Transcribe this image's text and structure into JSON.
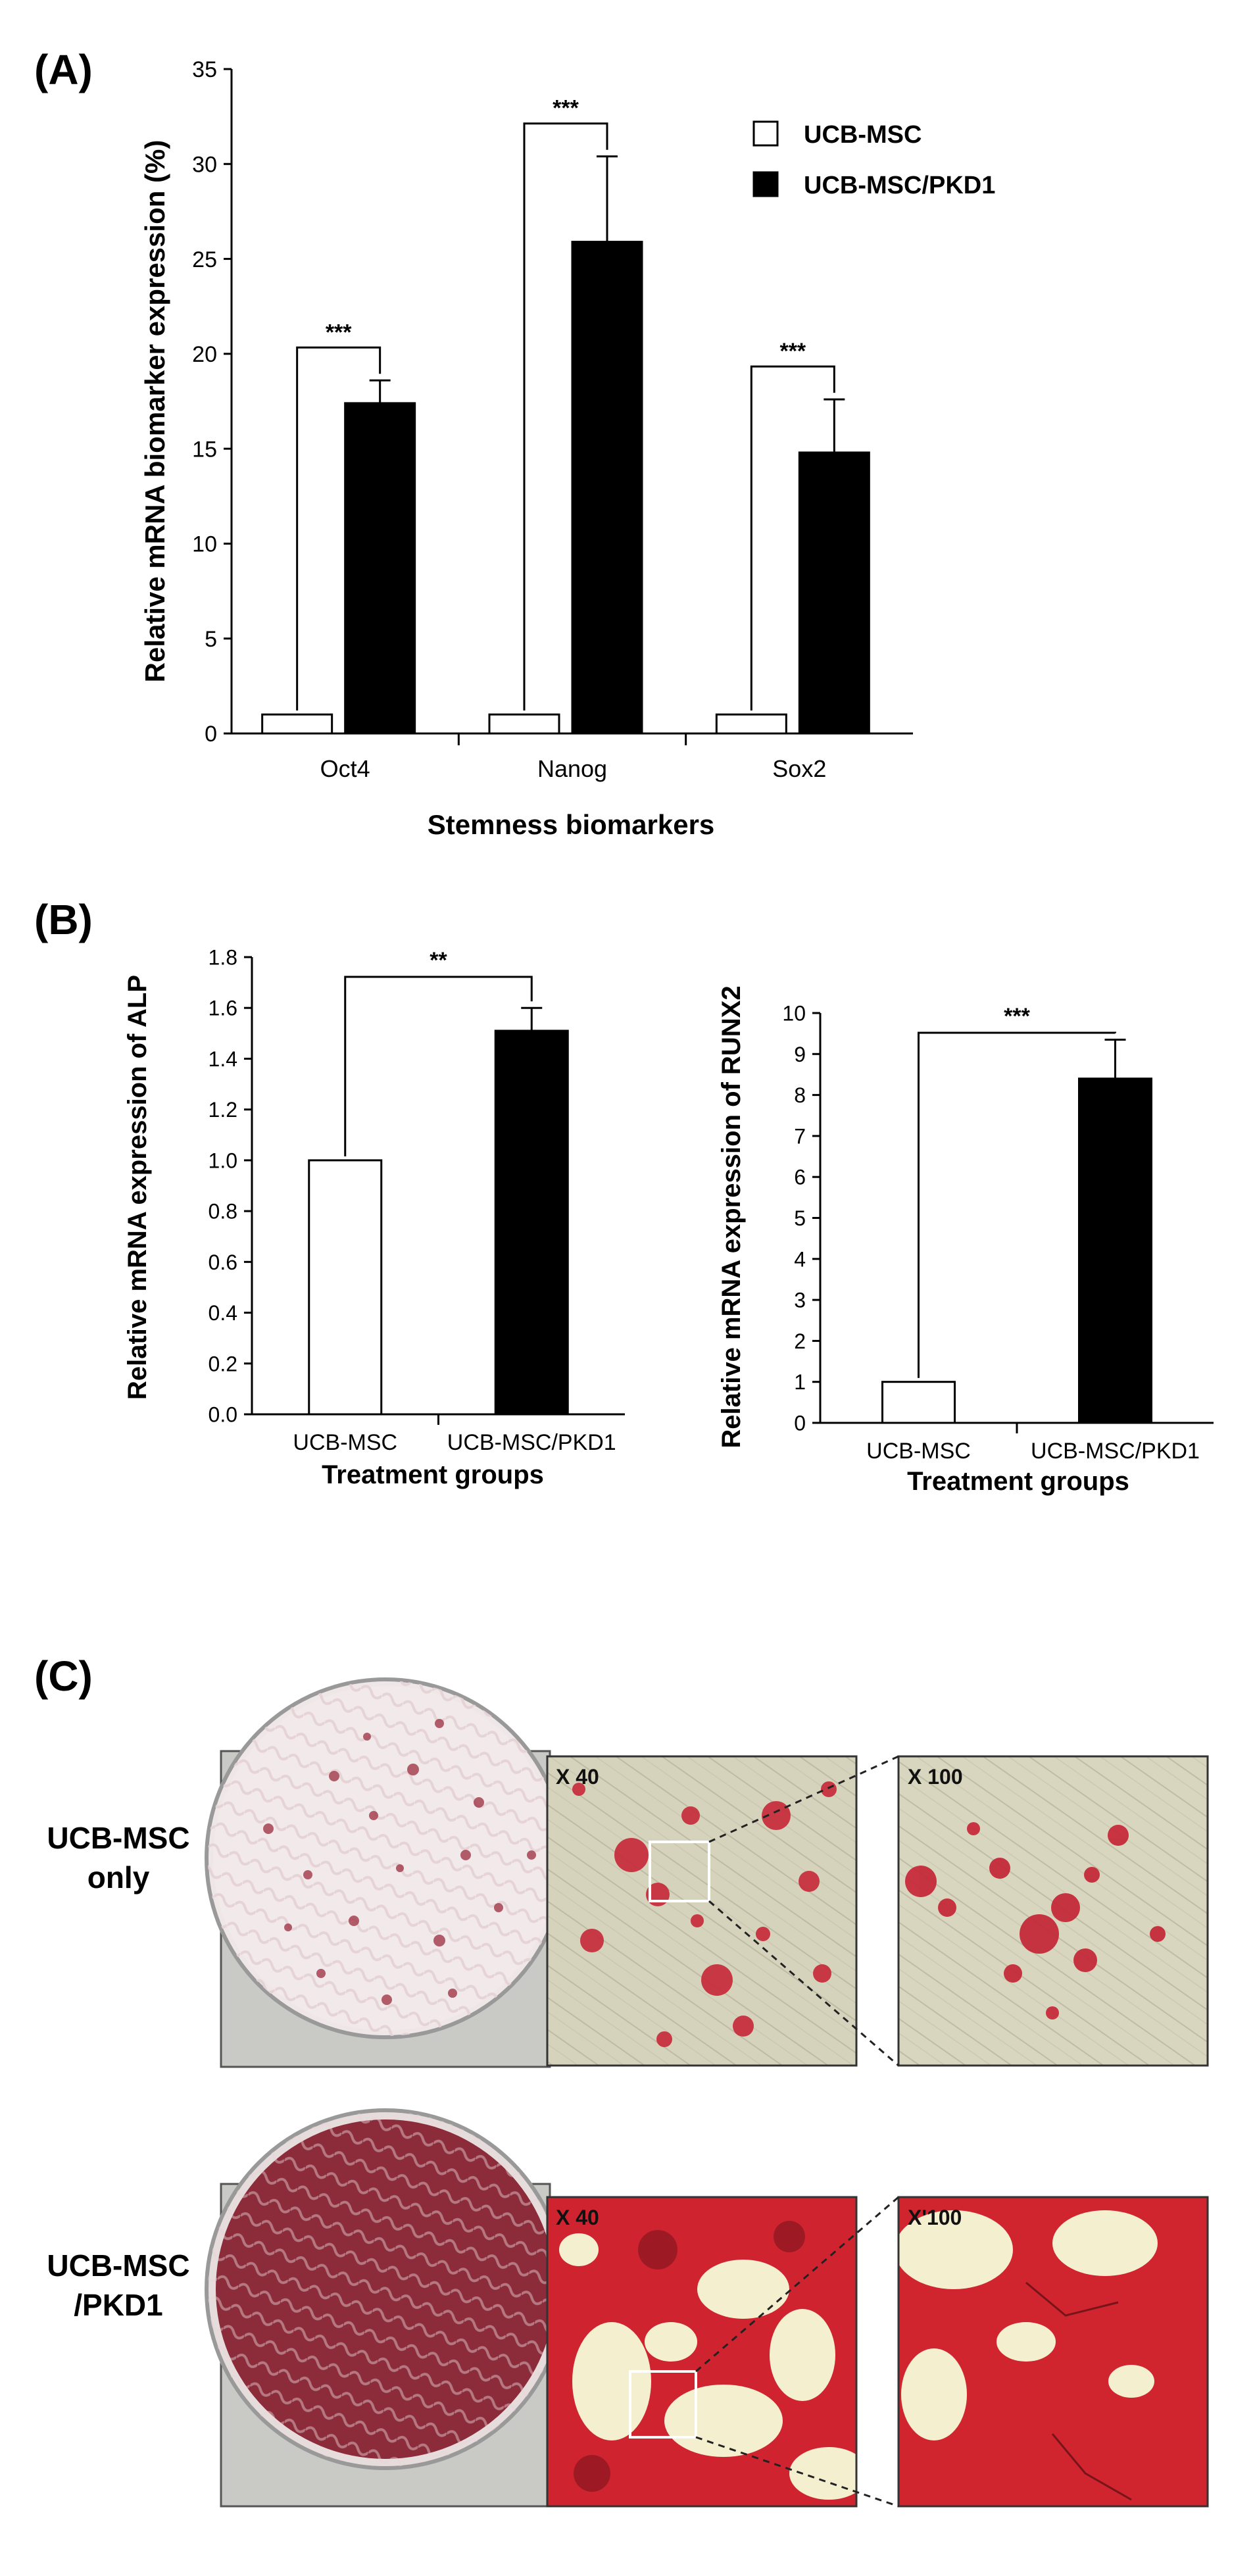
{
  "panels": {
    "A": {
      "label": "(A)"
    },
    "B": {
      "label": "(B)"
    },
    "C": {
      "label": "(C)"
    }
  },
  "legend": {
    "items": [
      "UCB-MSC",
      "UCB-MSC/PKD1"
    ]
  },
  "colors": {
    "control": "#ffffff",
    "treated": "#000000",
    "axis": "#000000"
  },
  "chart_data": [
    {
      "id": "A",
      "type": "bar",
      "title": "",
      "xlabel": "Stemness biomarkers",
      "ylabel": "Relative mRNA biomarker expression (%)",
      "categories": [
        "Oct4",
        "Nanog",
        "Sox2"
      ],
      "series": [
        {
          "name": "UCB-MSC",
          "values": [
            1,
            1,
            1
          ],
          "errors": [
            0,
            0,
            0
          ]
        },
        {
          "name": "UCB-MSC/PKD1",
          "values": [
            17.4,
            25.9,
            14.8
          ],
          "errors": [
            1.2,
            4.5,
            2.8
          ]
        }
      ],
      "ylim": [
        0,
        35
      ],
      "yticks": [
        "0",
        "5",
        "10",
        "15",
        "20",
        "25",
        "30",
        "35"
      ],
      "significance": [
        "***",
        "***",
        "***"
      ],
      "legend_position": "top-right",
      "grid": false
    },
    {
      "id": "B1",
      "type": "bar",
      "title": "",
      "xlabel": "Treatment groups",
      "ylabel": "Relative mRNA expression  of ALP",
      "categories": [
        "UCB-MSC",
        "UCB-MSC/PKD1"
      ],
      "values": [
        1.0,
        1.51
      ],
      "errors": [
        0,
        0.09
      ],
      "ylim": [
        0,
        1.8
      ],
      "yticks": [
        "0.0",
        "0.2",
        "0.4",
        "0.6",
        "0.8",
        "1.0",
        "1.2",
        "1.4",
        "1.6",
        "1.8"
      ],
      "significance": "**",
      "grid": false
    },
    {
      "id": "B2",
      "type": "bar",
      "title": "",
      "xlabel": "Treatment groups",
      "ylabel": "Relative mRNA expression  of RUNX2",
      "categories": [
        "UCB-MSC",
        "UCB-MSC/PKD1"
      ],
      "values": [
        1.0,
        8.4
      ],
      "errors": [
        0,
        0.95
      ],
      "ylim": [
        0,
        10
      ],
      "yticks": [
        "0",
        "1",
        "2",
        "3",
        "4",
        "5",
        "6",
        "7",
        "8",
        "9",
        "10"
      ],
      "significance": "***",
      "grid": false
    }
  ],
  "panel_c": {
    "row_labels": [
      [
        "UCB-MSC",
        "only"
      ],
      [
        "UCB-MSC",
        "/PKD1"
      ]
    ],
    "magnifications": [
      [
        "X 40",
        "X 100"
      ],
      [
        "X 40",
        "X'100"
      ]
    ]
  }
}
